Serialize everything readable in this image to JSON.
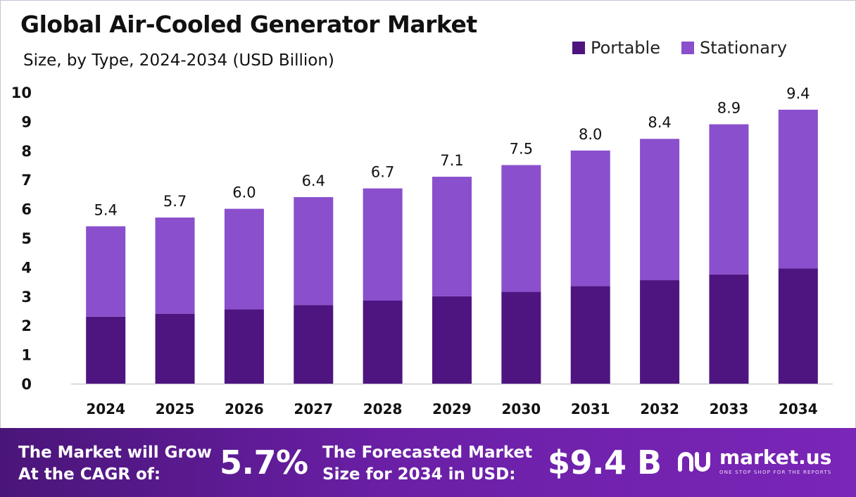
{
  "header": {
    "title": "Global Air-Cooled Generator Market",
    "subtitle": "Size, by Type, 2024-2034 (USD Billion)"
  },
  "legend": [
    {
      "label": "Portable",
      "color": "#4e1580"
    },
    {
      "label": "Stationary",
      "color": "#8a4fcc"
    }
  ],
  "chart_data": {
    "type": "bar",
    "stacked": true,
    "categories": [
      "2024",
      "2025",
      "2026",
      "2027",
      "2028",
      "2029",
      "2030",
      "2031",
      "2032",
      "2033",
      "2034"
    ],
    "series": [
      {
        "name": "Portable",
        "color": "#4e1580",
        "values": [
          2.3,
          2.4,
          2.55,
          2.7,
          2.85,
          3.0,
          3.15,
          3.35,
          3.55,
          3.75,
          3.95
        ]
      },
      {
        "name": "Stationary",
        "color": "#8a4fcc",
        "values": [
          3.1,
          3.3,
          3.45,
          3.7,
          3.85,
          4.1,
          4.35,
          4.65,
          4.85,
          5.15,
          5.45
        ]
      }
    ],
    "totals": [
      "5.4",
      "5.7",
      "6.0",
      "6.4",
      "6.7",
      "7.1",
      "7.5",
      "8.0",
      "8.4",
      "8.9",
      "9.4"
    ],
    "yticks": [
      0,
      1,
      2,
      3,
      4,
      5,
      6,
      7,
      8,
      9,
      10
    ],
    "ylim": [
      0,
      10
    ],
    "grid": false,
    "legend_position": "top-right"
  },
  "footer": {
    "cagr_label_line1": "The Market will Grow",
    "cagr_label_line2": "At the CAGR of:",
    "cagr_value": "5.7%",
    "forecast_label_line1": "The Forecasted Market",
    "forecast_label_line2": "Size for 2034 in USD:",
    "forecast_value": "$9.4 B",
    "brand_name": "market.us",
    "brand_tagline": "ONE STOP SHOP FOR THE REPORTS",
    "brand_icon": "market-us-logo-icon"
  }
}
